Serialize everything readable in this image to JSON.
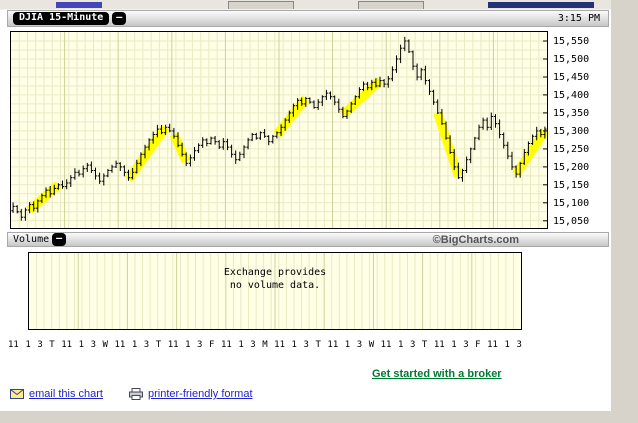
{
  "chart_header": {
    "title": "DJIA 15-Minute",
    "collapse_label": "—",
    "time": "3:15 PM"
  },
  "volume_header": {
    "title": "Volume",
    "collapse_label": "—",
    "copyright": "©BigCharts.com"
  },
  "chart_data": {
    "type": "candlestick",
    "title": "DJIA 15-Minute",
    "quote_time": "3:15 PM",
    "ylim": [
      15030,
      15575
    ],
    "yticks": [
      15550,
      15500,
      15450,
      15400,
      15350,
      15300,
      15250,
      15200,
      15150,
      15100,
      15050
    ],
    "grid": true,
    "legend": "none",
    "candles_per_day": 13,
    "closes": [
      15090,
      15075,
      15060,
      15080,
      15095,
      15085,
      15105,
      15120,
      15135,
      15125,
      15140,
      15150,
      15145,
      15155,
      15170,
      15185,
      15180,
      15195,
      15205,
      15190,
      15175,
      15160,
      15175,
      15190,
      15200,
      15210,
      15200,
      15185,
      15170,
      15185,
      15210,
      15235,
      15255,
      15275,
      15290,
      15305,
      15295,
      15310,
      15300,
      15285,
      15260,
      15235,
      15210,
      15225,
      15245,
      15260,
      15275,
      15265,
      15280,
      15270,
      15255,
      15270,
      15255,
      15235,
      15220,
      15235,
      15255,
      15275,
      15290,
      15280,
      15295,
      15285,
      15270,
      15285,
      15295,
      15310,
      15330,
      15350,
      15370,
      15385,
      15375,
      15390,
      15380,
      15365,
      15380,
      15395,
      15405,
      15395,
      15380,
      15360,
      15340,
      15355,
      15375,
      15395,
      15415,
      15430,
      15420,
      15435,
      15425,
      15440,
      15430,
      15445,
      15470,
      15500,
      15530,
      15550,
      15520,
      15480,
      15450,
      15470,
      15440,
      15410,
      15380,
      15350,
      15320,
      15280,
      15240,
      15200,
      15170,
      15190,
      15220,
      15250,
      15280,
      15310,
      15330,
      15310,
      15340,
      15320,
      15290,
      15260,
      15230,
      15200,
      15180,
      15210,
      15240,
      15265,
      15285,
      15300,
      15290,
      15305
    ],
    "highlights": [
      {
        "i0": 4,
        "p0": 15080,
        "i1": 11,
        "p1": 15150
      },
      {
        "i0": 28,
        "p0": 15165,
        "i1": 37,
        "p1": 15310
      },
      {
        "i0": 39,
        "p0": 15290,
        "i1": 42,
        "p1": 15215
      },
      {
        "i0": 64,
        "p0": 15290,
        "i1": 71,
        "p1": 15390
      },
      {
        "i0": 80,
        "p0": 15345,
        "i1": 89,
        "p1": 15440
      },
      {
        "i0": 103,
        "p0": 15350,
        "i1": 108,
        "p1": 15175
      },
      {
        "i0": 122,
        "p0": 15180,
        "i1": 129,
        "p1": 15300
      }
    ],
    "x_axis_tokens": [
      "11",
      "1",
      "3",
      "T",
      "11",
      "1",
      "3",
      "W",
      "11",
      "1",
      "3",
      "T",
      "11",
      "1",
      "3",
      "F",
      "11",
      "1",
      "3",
      "M",
      "11",
      "1",
      "3",
      "T",
      "11",
      "1",
      "3",
      "W",
      "11",
      "1",
      "3",
      "T",
      "11",
      "1",
      "3",
      "F",
      "11",
      "1",
      "3"
    ],
    "volume_note_lines": [
      "Exchange provides",
      "no volume data."
    ]
  },
  "footer": {
    "broker_link_label": "Get started with a broker",
    "email_chart_label": "email this chart",
    "printer_label": "printer-friendly format"
  },
  "colors": {
    "plot_bg": "#ffffe6",
    "grid": "#e9e9c4",
    "grid_day": "#cfcf9a",
    "candle": "#000000",
    "highlight": "#ffff00",
    "link_blue": "#2222cc",
    "link_green": "#007a33"
  }
}
